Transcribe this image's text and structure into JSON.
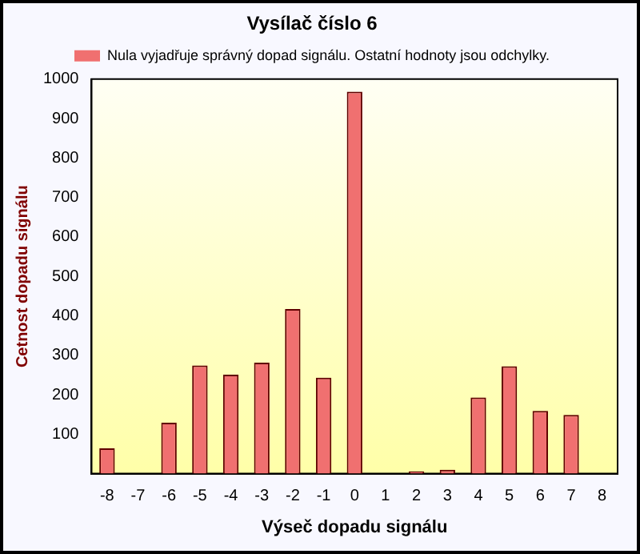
{
  "chart_data": {
    "type": "bar",
    "title": "Vysílač číslo 6",
    "xlabel": "Výseč dopadu signálu",
    "ylabel": "Cetnost dopadu signálu",
    "categories": [
      "-8",
      "-7",
      "-6",
      "-5",
      "-4",
      "-3",
      "-2",
      "-1",
      "0",
      "1",
      "2",
      "3",
      "4",
      "5",
      "6",
      "7",
      "8"
    ],
    "series": [
      {
        "name": "Nula vyjadřuje správný dopad signálu. Ostatní hodnoty jsou odchylky.",
        "color": "#f07070",
        "values": [
          64,
          0,
          129,
          274,
          251,
          281,
          417,
          243,
          968,
          0,
          6,
          10,
          193,
          272,
          159,
          149,
          0
        ]
      }
    ],
    "ylim": [
      0,
      1000
    ],
    "yticks": [
      100,
      200,
      300,
      400,
      500,
      600,
      700,
      800,
      900,
      1000
    ],
    "grid": false,
    "legend": "top"
  }
}
